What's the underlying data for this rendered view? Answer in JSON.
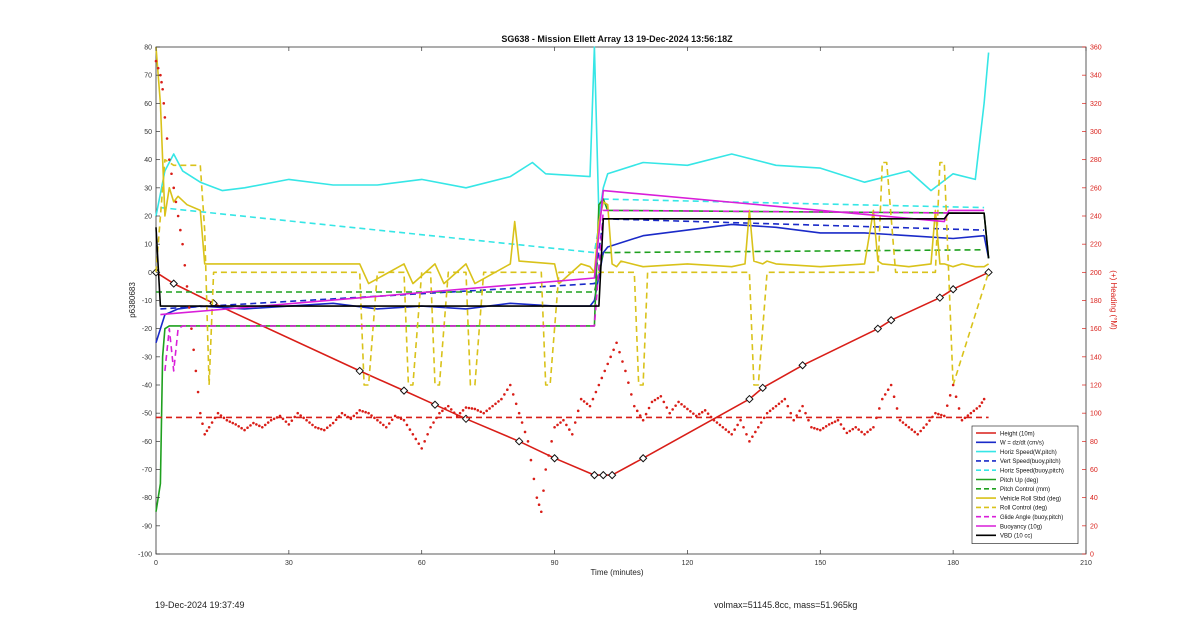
{
  "chart_data": {
    "type": "line",
    "title": "SG638 - Mission Ellett Array 13 19-Dec-2024 13:56:18Z",
    "xlabel": "Time (minutes)",
    "ylabel": "p6380683",
    "y2label": "(+) Heading (°M)",
    "xlim": [
      0,
      210
    ],
    "ylim": [
      -100,
      80
    ],
    "y2lim": [
      0,
      360
    ],
    "xticks": [
      0,
      30,
      60,
      90,
      120,
      150,
      180,
      210
    ],
    "yticks": [
      -100,
      -90,
      -80,
      -70,
      -60,
      -50,
      -40,
      -30,
      -20,
      -10,
      0,
      10,
      20,
      30,
      40,
      50,
      60,
      70,
      80
    ],
    "y2ticks": [
      0,
      20,
      40,
      60,
      80,
      100,
      120,
      140,
      160,
      180,
      200,
      220,
      240,
      260,
      280,
      300,
      320,
      340,
      360
    ],
    "grid": false,
    "legend_position": "bottom-right",
    "series": [
      {
        "name": "Height (10m)",
        "color": "#d91e18",
        "style": "solid",
        "axis": "left",
        "marker": "diamond",
        "x": [
          0,
          4,
          13,
          46,
          56,
          63,
          70,
          82,
          90,
          99,
          101,
          103,
          110,
          134,
          137,
          146,
          163,
          166,
          177,
          180,
          188
        ],
        "y": [
          0,
          -4,
          -11,
          -35,
          -42,
          -47,
          -52,
          -60,
          -66,
          -72,
          -72,
          -72,
          -66,
          -45,
          -41,
          -33,
          -20,
          -17,
          -9,
          -6,
          0
        ]
      },
      {
        "name": "W = dz/dt (cm/s)",
        "color": "#1a2ac8",
        "style": "solid",
        "axis": "left",
        "x": [
          0,
          2,
          5,
          10,
          20,
          30,
          40,
          50,
          60,
          70,
          80,
          90,
          98,
          99,
          101,
          102,
          110,
          120,
          130,
          140,
          150,
          160,
          170,
          180,
          187,
          188
        ],
        "y": [
          -25,
          -15,
          -13,
          -12,
          -13,
          -12,
          -11,
          -13,
          -12,
          -13,
          -11,
          -12,
          -12,
          -10,
          7,
          9,
          13,
          15,
          17,
          16,
          14,
          14,
          13,
          12,
          13,
          5
        ]
      },
      {
        "name": "Horiz Speed(W,pitch)",
        "color": "#36e6e6",
        "style": "solid",
        "axis": "left",
        "x": [
          0,
          2,
          4,
          6,
          10,
          15,
          20,
          30,
          40,
          50,
          60,
          70,
          80,
          85,
          88,
          98,
          99,
          100,
          101,
          102,
          110,
          120,
          130,
          140,
          150,
          160,
          170,
          175,
          180,
          185,
          187,
          188
        ],
        "y": [
          20,
          36,
          42,
          36,
          32,
          29,
          30,
          33,
          31,
          31,
          33,
          30,
          34,
          39,
          35,
          34,
          80,
          20,
          30,
          35,
          39,
          38,
          42,
          38,
          37,
          32,
          36,
          29,
          35,
          33,
          60,
          78
        ]
      },
      {
        "name": "Vert Speed(buoy,pitch)",
        "color": "#1a2ac8",
        "style": "dashed",
        "axis": "left",
        "x": [
          1,
          99,
          101,
          187
        ],
        "y": [
          -13,
          -4,
          19,
          15
        ]
      },
      {
        "name": "Horiz Speed(buoy,pitch)",
        "color": "#36e6e6",
        "style": "dashed",
        "axis": "left",
        "x": [
          1,
          99,
          101,
          187
        ],
        "y": [
          23,
          7,
          26,
          23
        ]
      },
      {
        "name": "Pitch Up (deg)",
        "color": "#1fa01f",
        "style": "solid",
        "axis": "left",
        "x": [
          0,
          1,
          1.5,
          2,
          3,
          5,
          99,
          100,
          101,
          102,
          103,
          187,
          188
        ],
        "y": [
          -85,
          -75,
          -30,
          -20,
          -19,
          -19,
          -19,
          24,
          26,
          22,
          22,
          21,
          5
        ]
      },
      {
        "name": "Pitch Control (mm)",
        "color": "#1fa01f",
        "style": "dashed",
        "axis": "left",
        "x": [
          0,
          99,
          101,
          187
        ],
        "y": [
          -7,
          -7,
          7,
          8
        ]
      },
      {
        "name": "Vehicle Roll Stbd (deg)",
        "color": "#d9c21a",
        "style": "solid",
        "axis": "left",
        "x": [
          0,
          1,
          2,
          3,
          4,
          5,
          7,
          10,
          11,
          20,
          46,
          48,
          56,
          58,
          63,
          65,
          70,
          72,
          80,
          81,
          82,
          90,
          91,
          96,
          98,
          99,
          100,
          101,
          102,
          103,
          104,
          105,
          110,
          120,
          130,
          133,
          134,
          135,
          137,
          138,
          140,
          150,
          160,
          162,
          163,
          164,
          170,
          175,
          176,
          177,
          178,
          180,
          182,
          185,
          187,
          188
        ],
        "y": [
          80,
          60,
          20,
          30,
          25,
          27,
          24,
          22,
          3,
          3,
          3,
          -4,
          3,
          -4,
          3,
          -4,
          3,
          -4,
          3,
          18,
          4,
          3,
          -4,
          3,
          2,
          0,
          18,
          25,
          24,
          3,
          2,
          4,
          2,
          3,
          2,
          3,
          22,
          4,
          3,
          4,
          3,
          2,
          3,
          22,
          4,
          3,
          2,
          3,
          22,
          3,
          3,
          2,
          3,
          2,
          2,
          3
        ]
      },
      {
        "name": "Roll Control (deg)",
        "color": "#d9c21a",
        "style": "dashed",
        "axis": "left",
        "x": [
          0,
          2,
          4,
          10,
          11,
          12,
          13,
          46,
          47,
          48,
          50,
          56,
          57,
          58,
          60,
          62,
          63,
          64,
          66,
          70,
          71,
          72,
          74,
          87,
          88,
          89,
          91,
          98,
          101,
          104,
          108,
          109,
          110,
          111,
          112,
          134,
          135,
          136,
          138,
          163,
          164,
          165,
          167,
          176,
          177,
          178,
          180,
          188
        ],
        "y": [
          0,
          40,
          38,
          38,
          15,
          -40,
          0,
          0,
          -40,
          -40,
          0,
          0,
          -40,
          -40,
          0,
          0,
          -40,
          -40,
          0,
          0,
          -40,
          -40,
          0,
          0,
          -40,
          -40,
          0,
          0,
          0,
          0,
          0,
          -40,
          -40,
          0,
          0,
          0,
          -40,
          -40,
          0,
          0,
          39,
          39,
          0,
          0,
          39,
          39,
          -40,
          0
        ]
      },
      {
        "name": "Glide Angle (buoy,pitch)",
        "color": "#d91ed9",
        "style": "dashed",
        "axis": "left",
        "x": [
          2,
          3,
          4,
          5,
          6,
          99,
          101,
          187
        ],
        "y": [
          -35,
          -20,
          -35,
          -20,
          -19,
          -19,
          22,
          21
        ]
      },
      {
        "name": "Buoyancy (10g)",
        "color": "#d91ed9",
        "style": "solid",
        "axis": "left",
        "x": [
          1,
          99,
          101,
          178,
          179,
          187
        ],
        "y": [
          -15,
          -2,
          29,
          18,
          22,
          22
        ]
      },
      {
        "name": "VBD (10 cc)",
        "color": "#000000",
        "style": "solid",
        "axis": "left",
        "x": [
          0,
          1,
          2,
          99,
          100,
          101,
          102,
          178,
          179,
          187,
          188
        ],
        "y": [
          16,
          -12,
          -12,
          -12,
          -12,
          19,
          19,
          19,
          21,
          21,
          5
        ]
      },
      {
        "name": "",
        "color": "#d91e18",
        "style": "dotted",
        "axis": "right",
        "x": [
          0,
          1,
          1.5,
          2,
          3,
          4,
          5,
          6,
          7,
          8,
          9,
          10,
          11,
          12,
          14,
          16,
          18,
          20,
          22,
          24,
          26,
          28,
          30,
          32,
          34,
          36,
          38,
          40,
          42,
          44,
          46,
          48,
          50,
          52,
          54,
          56,
          58,
          60,
          62,
          64,
          66,
          68,
          70,
          72,
          74,
          76,
          78,
          80,
          82,
          84,
          86,
          87,
          88,
          90,
          92,
          94,
          96,
          98,
          100,
          102,
          104,
          106,
          108,
          110,
          112,
          114,
          116,
          118,
          120,
          122,
          124,
          126,
          128,
          130,
          132,
          134,
          136,
          138,
          140,
          142,
          144,
          146,
          148,
          150,
          152,
          154,
          156,
          158,
          160,
          162,
          164,
          166,
          168,
          170,
          172,
          174,
          176,
          178,
          180,
          182,
          184,
          186,
          187
        ],
        "y": [
          350,
          340,
          330,
          310,
          280,
          260,
          240,
          220,
          190,
          160,
          130,
          100,
          85,
          90,
          100,
          95,
          92,
          88,
          93,
          90,
          95,
          98,
          92,
          100,
          95,
          90,
          88,
          93,
          100,
          96,
          102,
          100,
          95,
          90,
          98,
          95,
          85,
          75,
          90,
          100,
          105,
          98,
          104,
          103,
          100,
          105,
          110,
          120,
          100,
          80,
          40,
          30,
          60,
          90,
          95,
          85,
          110,
          105,
          120,
          135,
          150,
          130,
          105,
          95,
          108,
          112,
          100,
          108,
          103,
          98,
          102,
          95,
          90,
          85,
          95,
          80,
          90,
          100,
          105,
          110,
          95,
          105,
          90,
          88,
          92,
          95,
          86,
          90,
          85,
          90,
          110,
          120,
          95,
          90,
          85,
          92,
          100,
          98,
          120,
          95,
          100,
          105,
          110
        ]
      },
      {
        "name": "",
        "color": "#d91e18",
        "style": "dashed",
        "axis": "right",
        "x": [
          0,
          188
        ],
        "y": [
          97,
          97
        ]
      }
    ]
  },
  "footer": {
    "left": "19-Dec-2024 19:37:49",
    "right": "volmax=51145.8cc, mass=51.965kg"
  }
}
